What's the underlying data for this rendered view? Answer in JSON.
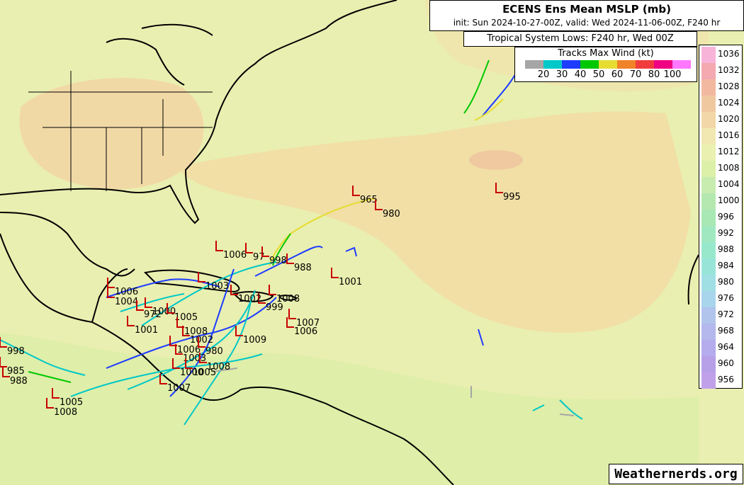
{
  "header": {
    "title": "ECENS Ens Mean MSLP (mb)",
    "subtitle": "init: Sun 2024-10-27-00Z, valid: Wed 2024-11-06-00Z, F240 hr"
  },
  "lows_legend": {
    "label": "Tropical System Lows: F240 hr, Wed 00Z"
  },
  "tracks_legend": {
    "title": "Tracks Max Wind (kt)",
    "colors": [
      "#a6a6a6",
      "#00c8c8",
      "#1e3cff",
      "#00c800",
      "#e6dc32",
      "#f08228",
      "#f03c3c",
      "#f00082",
      "#ff78ff"
    ],
    "ticks": [
      "20",
      "30",
      "40",
      "50",
      "60",
      "70",
      "80",
      "100"
    ]
  },
  "pressure_colorbar": {
    "levels": [
      {
        "label": "1036",
        "color": "#f8b4d8"
      },
      {
        "label": "1032",
        "color": "#f4a8b0"
      },
      {
        "label": "1028",
        "color": "#f2b8a0"
      },
      {
        "label": "1024",
        "color": "#f0c8a0"
      },
      {
        "label": "1020",
        "color": "#f2d8a8"
      },
      {
        "label": "1016",
        "color": "#f0e8b0"
      },
      {
        "label": "1012",
        "color": "#eaf0b0"
      },
      {
        "label": "1008",
        "color": "#dcf0a8"
      },
      {
        "label": "1004",
        "color": "#c8ecb0"
      },
      {
        "label": "1000",
        "color": "#b4e8b0"
      },
      {
        "label": "996",
        "color": "#a8e8b4"
      },
      {
        "label": "992",
        "color": "#a0e8c0"
      },
      {
        "label": "988",
        "color": "#98e8cc"
      },
      {
        "label": "984",
        "color": "#98e4d8"
      },
      {
        "label": "980",
        "color": "#a0e0e4"
      },
      {
        "label": "976",
        "color": "#a8d4ec"
      },
      {
        "label": "972",
        "color": "#b0c4ec"
      },
      {
        "label": "968",
        "color": "#b4b8ec"
      },
      {
        "label": "964",
        "color": "#b4acec"
      },
      {
        "label": "960",
        "color": "#b8a0e8"
      },
      {
        "label": "956",
        "color": "#c0a0e8"
      }
    ]
  },
  "storm_lows": [
    {
      "label": "965"
    },
    {
      "label": "980"
    },
    {
      "label": "995"
    },
    {
      "label": "1006"
    },
    {
      "label": "97"
    },
    {
      "label": "998"
    },
    {
      "label": "988"
    },
    {
      "label": "1001"
    },
    {
      "label": "1008"
    },
    {
      "label": "999"
    },
    {
      "label": "1007"
    },
    {
      "label": "1006"
    },
    {
      "label": "1002"
    },
    {
      "label": "1009"
    },
    {
      "label": "1006"
    },
    {
      "label": "1004"
    },
    {
      "label": "972"
    },
    {
      "label": "1000"
    },
    {
      "label": "1005"
    },
    {
      "label": "1001"
    },
    {
      "label": "1003"
    },
    {
      "label": "1008"
    },
    {
      "label": "1002"
    },
    {
      "label": "1006"
    },
    {
      "label": "980"
    },
    {
      "label": "1003"
    },
    {
      "label": "1000"
    },
    {
      "label": "1005"
    },
    {
      "label": "1008"
    },
    {
      "label": "1007"
    },
    {
      "label": "998"
    },
    {
      "label": "985"
    },
    {
      "label": "988"
    },
    {
      "label": "1005"
    },
    {
      "label": "1008"
    }
  ],
  "map_colors": {
    "land_outline": "#000000",
    "storm_marker": "#c80000",
    "background": "#e9efb0"
  },
  "branding": {
    "text": "Weathernerds.org"
  }
}
